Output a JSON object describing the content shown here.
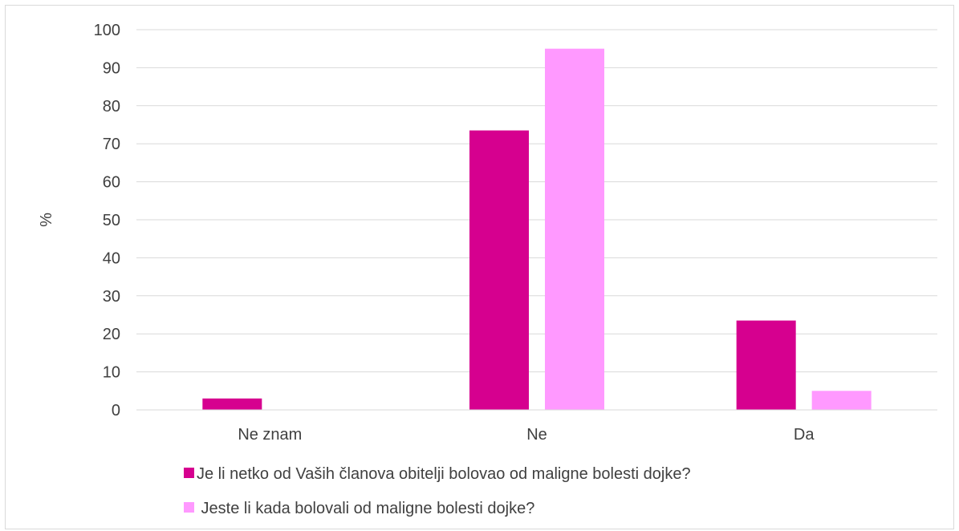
{
  "chart_data": {
    "type": "bar",
    "categories": [
      "Ne znam",
      "Ne",
      "Da"
    ],
    "series": [
      {
        "name": "Je li netko od Vaših članova obitelji bolovao od maligne bolesti dojke?",
        "color": "#d6008f",
        "values": [
          3,
          73.5,
          23.5
        ]
      },
      {
        "name": " Jeste li kada bolovali od maligne bolesti dojke?",
        "color": "#ff99ff",
        "values": [
          0,
          95,
          5
        ]
      }
    ],
    "ylabel": "%",
    "ylim": [
      0,
      100
    ],
    "yticks": [
      0,
      10,
      20,
      30,
      40,
      50,
      60,
      70,
      80,
      90,
      100
    ],
    "grid": true,
    "legend_position": "bottom"
  }
}
